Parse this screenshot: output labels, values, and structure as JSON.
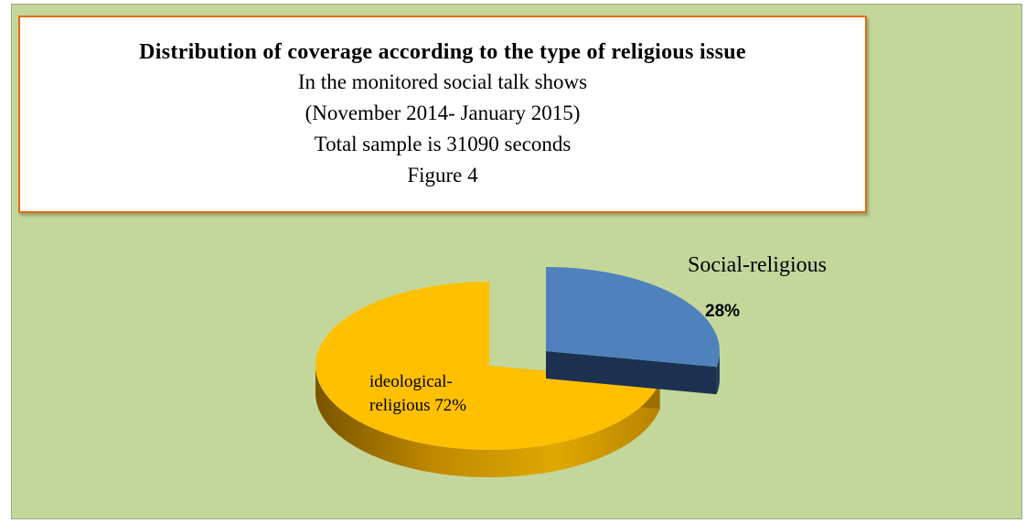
{
  "chart_data": {
    "type": "pie",
    "title": "Distribution of coverage according to the type of religious issue",
    "subtitle_lines": [
      "In the monitored social talk shows",
      "(November 2014- January 2015)",
      "Total sample is 31090 seconds",
      "Figure 4"
    ],
    "slices": [
      {
        "label": "Social-religious",
        "value": 28,
        "value_label": "28%",
        "color": "#4f81bd",
        "exploded": true
      },
      {
        "label_lines": [
          "ideological-",
          "religious 72%"
        ],
        "value": 72,
        "color": "#ffc000",
        "exploded": false
      }
    ],
    "style": "3d-exploded"
  },
  "colors": {
    "background": "#c4d79b",
    "title_border": "#e46c0a"
  }
}
